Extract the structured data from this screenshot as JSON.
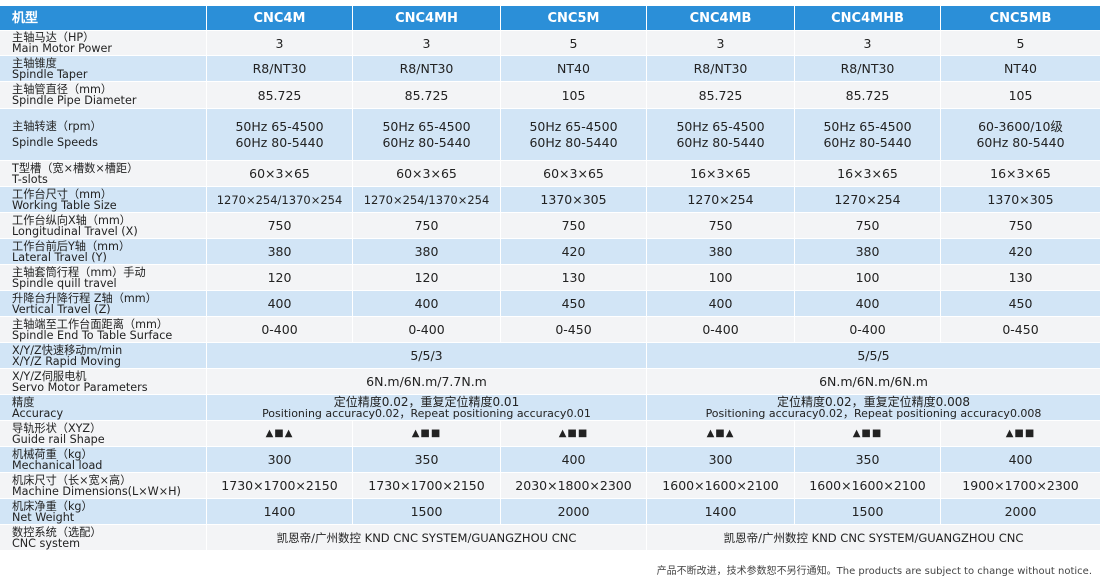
{
  "header": {
    "label": "机型",
    "models": [
      "CNC4M",
      "CNC4MH",
      "CNC5M",
      "CNC4MB",
      "CNC4MHB",
      "CNC5MB"
    ]
  },
  "rows": [
    {
      "zh": "主轴马达（HP）",
      "en": "Main Motor Power",
      "values": [
        "3",
        "3",
        "5",
        "3",
        "3",
        "5"
      ]
    },
    {
      "zh": "主轴锥度",
      "en": "Spindle Taper",
      "values": [
        "R8/NT30",
        "R8/NT30",
        "NT40",
        "R8/NT30",
        "R8/NT30",
        "NT40"
      ]
    },
    {
      "zh": "主轴管直径（mm）",
      "en": "Spindle Pipe Diameter",
      "values": [
        "85.725",
        "85.725",
        "105",
        "85.725",
        "85.725",
        "105"
      ]
    },
    {
      "zh": "主轴转速（rpm）",
      "en": "Spindle Speeds",
      "values": [
        [
          "50Hz 65-4500",
          "60Hz 80-5440"
        ],
        [
          "50Hz 65-4500",
          "60Hz 80-5440"
        ],
        [
          "50Hz 65-4500",
          "60Hz 80-5440"
        ],
        [
          "50Hz 65-4500",
          "60Hz 80-5440"
        ],
        [
          "50Hz 65-4500",
          "60Hz 80-5440"
        ],
        [
          "60-3600/10级",
          "60Hz 80-5440"
        ]
      ]
    },
    {
      "zh": "T型槽（宽×槽数×槽距）",
      "en": "T-slots",
      "values": [
        "60×3×65",
        "60×3×65",
        "60×3×65",
        "16×3×65",
        "16×3×65",
        "16×3×65"
      ]
    },
    {
      "zh": "工作台尺寸（mm）",
      "en": "Working Table Size",
      "values": [
        "1270×254/1370×254",
        "1270×254/1370×254",
        "1370×305",
        "1270×254",
        "1270×254",
        "1370×305"
      ]
    },
    {
      "zh": "工作台纵向X轴（mm）",
      "en": "Longitudinal Travel (X)",
      "values": [
        "750",
        "750",
        "750",
        "750",
        "750",
        "750"
      ]
    },
    {
      "zh": "工作台前后Y轴（mm）",
      "en": "Lateral Travel (Y)",
      "values": [
        "380",
        "380",
        "420",
        "380",
        "380",
        "420"
      ]
    },
    {
      "zh": "主轴套筒行程（mm）手动",
      "en": "Spindle quill travel",
      "values": [
        "120",
        "120",
        "130",
        "100",
        "100",
        "130"
      ]
    },
    {
      "zh": "升降台升降行程 Z轴（mm）",
      "en": "Vertical Travel (Z)",
      "values": [
        "400",
        "400",
        "450",
        "400",
        "400",
        "450"
      ]
    },
    {
      "zh": "主轴端至工作台面距离（mm）",
      "en": "Spindle End To Table Surface",
      "values": [
        "0-400",
        "0-400",
        "0-450",
        "0-400",
        "0-400",
        "0-450"
      ]
    }
  ],
  "rapid": {
    "zh": "X/Y/Z快速移动m/min",
    "en": "X/Y/Z Rapid Moving",
    "group1": "5/5/3",
    "group2": "5/5/5"
  },
  "servo": {
    "zh": "X/Y/Z伺服电机",
    "en": "Servo Motor Parameters",
    "group1": "6N.m/6N.m/7.7N.m",
    "group2": "6N.m/6N.m/6N.m"
  },
  "accuracy": {
    "zh": "精度",
    "en": "Accuracy",
    "group1_zh": "定位精度0.02，重复定位精度0.01",
    "group1_en": "Positioning accuracy0.02，Repeat positioning accuracy0.01",
    "group2_zh": "定位精度0.02，重复定位精度0.008",
    "group2_en": "Positioning accuracy0.02，Repeat positioning accuracy0.008"
  },
  "guide": {
    "zh": "导轨形状（XYZ）",
    "en": "Guide rail Shape",
    "values": [
      "▲■▲",
      "▲■■",
      "▲■■",
      "▲■▲",
      "▲■■",
      "▲■■"
    ]
  },
  "rows2": [
    {
      "zh": "机械荷重（kg）",
      "en": "Mechanical load",
      "values": [
        "300",
        "350",
        "400",
        "300",
        "350",
        "400"
      ]
    },
    {
      "zh": "机床尺寸（长×宽×高）",
      "en": "Machine Dimensions(L×W×H)",
      "values": [
        "1730×1700×2150",
        "1730×1700×2150",
        "2030×1800×2300",
        "1600×1600×2100",
        "1600×1600×2100",
        "1900×1700×2300"
      ]
    },
    {
      "zh": "机床净重（kg）",
      "en": "Net Weight",
      "values": [
        "1400",
        "1500",
        "2000",
        "1400",
        "1500",
        "2000"
      ]
    }
  ],
  "cnc": {
    "zh": "数控系统（选配）",
    "en": "CNC system",
    "group1": "凯恩帝/广州数控 KND CNC SYSTEM/GUANGZHOU CNC",
    "group2": "凯恩帝/广州数控 KND CNC SYSTEM/GUANGZHOU CNC"
  },
  "footnote": "产品不断改进，技术参数恕不另行通知。The products are subject to change without notice."
}
